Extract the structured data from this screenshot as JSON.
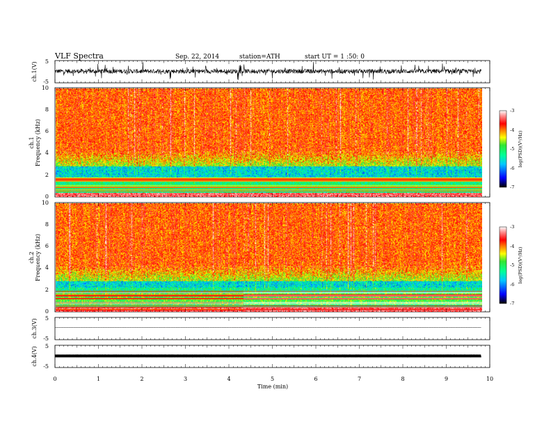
{
  "header": {
    "title": "VLF  Spectra",
    "date": "Sep. 22, 2014",
    "station": "station=ATH",
    "start": "start  UT  =   1  :50: 0"
  },
  "chart_data": [
    {
      "type": "line",
      "panel": "ch1-waveform",
      "ylabel": "ch.1(V)",
      "ylim": [
        -5,
        5
      ],
      "yticks": [
        "5",
        "-5"
      ],
      "xlim": [
        0,
        10
      ],
      "series": [
        {
          "values_desc": null,
          "amplitude_rms": 1.0,
          "style": "dense noise band"
        }
      ]
    },
    {
      "type": "heatmap",
      "panel": "ch1-spectrogram",
      "ylabel": [
        "ch.1",
        "Frequency  (kHz)"
      ],
      "ylim": [
        0,
        10
      ],
      "yticks": [
        "0",
        "2",
        "4",
        "6",
        "8",
        "10"
      ],
      "xlim": [
        0,
        9.8
      ],
      "colorbar": {
        "label": "log(PSD)(V²/Hz)",
        "range": [
          -7,
          -3
        ],
        "ticks": [
          "-3",
          "-4",
          "-5",
          "-6",
          "-7"
        ]
      }
    },
    {
      "type": "heatmap",
      "panel": "ch2-spectrogram",
      "ylabel": [
        "ch.2",
        "Frequency  (kHz)"
      ],
      "ylim": [
        0,
        10
      ],
      "yticks": [
        "0",
        "2",
        "4",
        "6",
        "8",
        "10"
      ],
      "xlim": [
        0,
        9.8
      ],
      "colorbar": {
        "label": "log(PSD)(V²/Hz)",
        "range": [
          -7,
          -3
        ],
        "ticks": [
          "-3",
          "-4",
          "-5",
          "-6",
          "-7"
        ]
      }
    },
    {
      "type": "line",
      "panel": "ch3-waveform",
      "ylabel": "ch.3(V)",
      "ylim": [
        -5,
        5
      ],
      "yticks": [
        "5",
        "-5"
      ],
      "xlim": [
        0,
        10
      ],
      "series": [
        {
          "level": 0.5,
          "amplitude_rms": 0.05
        }
      ]
    },
    {
      "type": "line",
      "panel": "ch4-waveform",
      "ylabel": "ch.4(V)",
      "ylim": [
        -5,
        5
      ],
      "yticks": [
        "5",
        "-5"
      ],
      "xlim": [
        0,
        10
      ],
      "series": [
        {
          "level": 0.2,
          "amplitude_rms": 0.0,
          "style": "thick flat"
        }
      ]
    }
  ],
  "xaxis": {
    "label": "Time  (min)",
    "ticks": [
      "0",
      "1",
      "2",
      "3",
      "4",
      "5",
      "6",
      "7",
      "8",
      "9",
      "10"
    ]
  },
  "colors": {
    "colormap": [
      "#000000",
      "#0000ff",
      "#00c8ff",
      "#00ff96",
      "#32e632",
      "#ffff00",
      "#ff7800",
      "#ff0000",
      "#ff8c8c",
      "#ffffff"
    ]
  }
}
